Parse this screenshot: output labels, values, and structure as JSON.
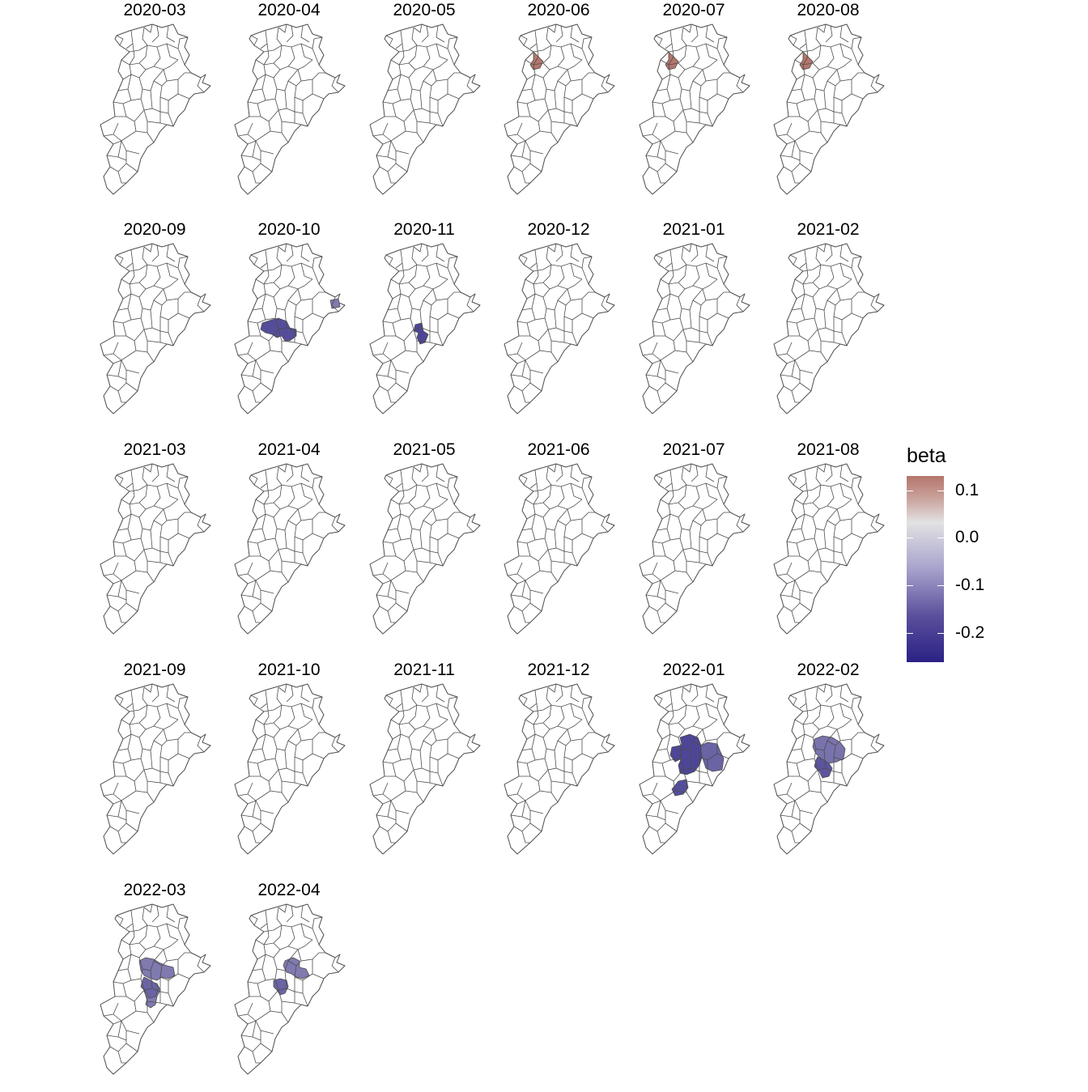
{
  "facets": [
    {
      "label": "2020-03",
      "highlights": []
    },
    {
      "label": "2020-04",
      "highlights": []
    },
    {
      "label": "2020-05",
      "highlights": []
    },
    {
      "label": "2020-06",
      "highlights": [
        {
          "region": "north-west-shoulder",
          "beta": 0.13
        }
      ]
    },
    {
      "label": "2020-07",
      "highlights": [
        {
          "region": "north-west-shoulder",
          "beta": 0.13
        }
      ]
    },
    {
      "label": "2020-08",
      "highlights": [
        {
          "region": "north-west-shoulder",
          "beta": 0.13
        }
      ]
    },
    {
      "label": "2020-09",
      "highlights": []
    },
    {
      "label": "2020-10",
      "highlights": [
        {
          "region": "central-south-wide",
          "beta": -0.2
        },
        {
          "region": "east-peninsula",
          "beta": -0.14
        }
      ]
    },
    {
      "label": "2020-11",
      "highlights": [
        {
          "region": "central-south-small",
          "beta": -0.21
        }
      ]
    },
    {
      "label": "2020-12",
      "highlights": []
    },
    {
      "label": "2021-01",
      "highlights": []
    },
    {
      "label": "2021-02",
      "highlights": []
    },
    {
      "label": "2021-03",
      "highlights": []
    },
    {
      "label": "2021-04",
      "highlights": []
    },
    {
      "label": "2021-05",
      "highlights": []
    },
    {
      "label": "2021-06",
      "highlights": []
    },
    {
      "label": "2021-07",
      "highlights": []
    },
    {
      "label": "2021-08",
      "highlights": []
    },
    {
      "label": "2021-09",
      "highlights": []
    },
    {
      "label": "2021-10",
      "highlights": []
    },
    {
      "label": "2021-11",
      "highlights": []
    },
    {
      "label": "2021-12",
      "highlights": []
    },
    {
      "label": "2022-01",
      "highlights": [
        {
          "region": "central-large",
          "beta": -0.21
        },
        {
          "region": "central-east",
          "beta": -0.17
        },
        {
          "region": "south-lobe",
          "beta": -0.2
        }
      ]
    },
    {
      "label": "2022-02",
      "highlights": [
        {
          "region": "central-medium",
          "beta": -0.15
        },
        {
          "region": "central-inner",
          "beta": -0.19
        }
      ]
    },
    {
      "label": "2022-03",
      "highlights": [
        {
          "region": "central-column",
          "beta": -0.14
        },
        {
          "region": "central-inner",
          "beta": -0.17
        }
      ]
    },
    {
      "label": "2022-04",
      "highlights": [
        {
          "region": "central-pair",
          "beta": -0.14
        },
        {
          "region": "central-inner-small",
          "beta": -0.17
        }
      ]
    }
  ],
  "legend": {
    "title": "beta",
    "ticks": [
      {
        "value": 0.1,
        "label": "0.1"
      },
      {
        "value": 0.0,
        "label": "0.0"
      },
      {
        "value": -0.1,
        "label": "-0.1"
      },
      {
        "value": -0.2,
        "label": "-0.2"
      }
    ],
    "range": [
      -0.26,
      0.13
    ],
    "colors": {
      "high": "#b5766c",
      "mid": "#e2e2e2",
      "low": "#2a2185"
    }
  },
  "map_style": {
    "border_color": "#4d4d4d",
    "fill_empty": "#ffffff"
  }
}
